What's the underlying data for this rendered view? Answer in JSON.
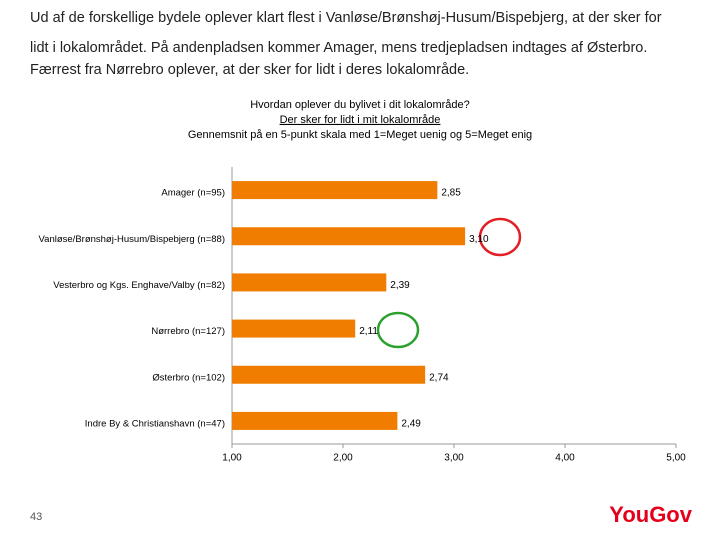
{
  "slide_text": [
    "Ud af de forskellige bydele oplever klart flest i Vanløse/Brønshøj-Husum/Bispebjerg, at der sker for",
    "lidt i lokalområdet. På andenpladsen kommer Amager, mens tredjepladsen indtages af Østerbro.",
    "Færrest fra Nørrebro oplever, at der sker for lidt i deres lokalområde."
  ],
  "chart_data": {
    "type": "bar",
    "orientation": "horizontal",
    "title_lines": [
      "Hvordan oplever du bylivet i dit lokalområde?",
      "Der sker for lidt i mit lokalområde",
      "Gennemsnit på en 5-punkt skala med 1=Meget uenig og 5=Meget enig"
    ],
    "categories": [
      "Amager (n=95)",
      "Vanløse/Brønshøj-Husum/Bispebjerg (n=88)",
      "Vesterbro og Kgs. Enghave/Valby (n=82)",
      "Nørrebro (n=127)",
      "Østerbro (n=102)",
      "Indre By & Christianshavn (n=47)"
    ],
    "values": [
      2.85,
      3.1,
      2.39,
      2.11,
      2.74,
      2.49
    ],
    "value_labels": [
      "2,85",
      "3,10",
      "2,39",
      "2,11",
      "2,74",
      "2,49"
    ],
    "color": "#f07d00",
    "xlim": [
      1,
      5
    ],
    "xticks": [
      {
        "value": 1,
        "label": "1,00"
      },
      {
        "value": 2,
        "label": "2,00"
      },
      {
        "value": 3,
        "label": "3,00"
      },
      {
        "value": 4,
        "label": "4,00"
      },
      {
        "value": 5,
        "label": "5,00"
      }
    ]
  },
  "page_number": "43",
  "logo": "YouGov"
}
